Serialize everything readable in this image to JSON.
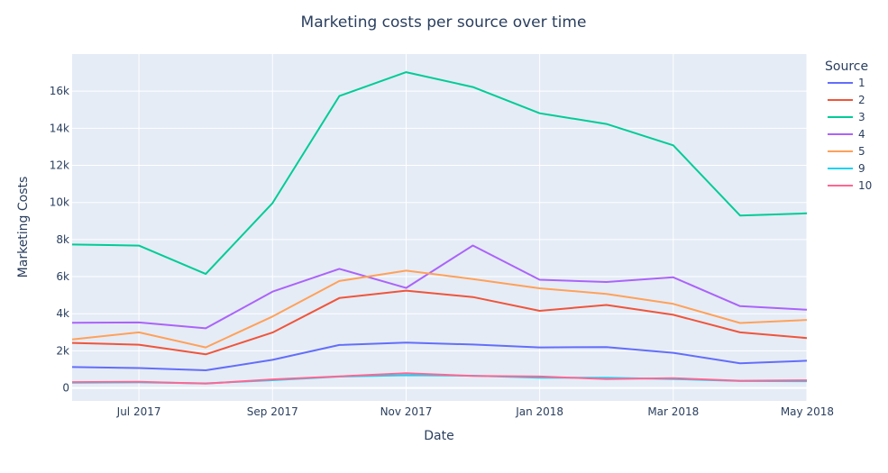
{
  "chart_data": {
    "type": "line",
    "title": "Marketing costs per source over time",
    "xlabel": "Date",
    "ylabel": "Marketing Costs",
    "x": [
      "2017-06",
      "2017-07",
      "2017-08",
      "2017-09",
      "2017-10",
      "2017-11",
      "2017-12",
      "2018-01",
      "2018-02",
      "2018-03",
      "2018-04",
      "2018-05"
    ],
    "xlim": [
      "2017-06",
      "2018-05"
    ],
    "ylim": [
      -700,
      18000
    ],
    "x_ticks": [
      {
        "x": "2017-07",
        "label": "Jul 2017"
      },
      {
        "x": "2017-09",
        "label": "Sep 2017"
      },
      {
        "x": "2017-11",
        "label": "Nov 2017"
      },
      {
        "x": "2018-01",
        "label": "Jan 2018"
      },
      {
        "x": "2018-03",
        "label": "Mar 2018"
      },
      {
        "x": "2018-05",
        "label": "May 2018"
      }
    ],
    "y_ticks": [
      {
        "value": 0,
        "label": "0"
      },
      {
        "value": 2000,
        "label": "2k"
      },
      {
        "value": 4000,
        "label": "4k"
      },
      {
        "value": 6000,
        "label": "6k"
      },
      {
        "value": 8000,
        "label": "8k"
      },
      {
        "value": 10000,
        "label": "10k"
      },
      {
        "value": 12000,
        "label": "12k"
      },
      {
        "value": 14000,
        "label": "14k"
      },
      {
        "value": 16000,
        "label": "16k"
      }
    ],
    "grid": true,
    "legend": {
      "title": "Source",
      "placement": "right"
    },
    "series": [
      {
        "name": "1",
        "color": "#636efa",
        "values": [
          1125,
          1073,
          951,
          1517,
          2316,
          2445,
          2342,
          2187,
          2205,
          1894,
          1327,
          1468
        ]
      },
      {
        "name": "2",
        "color": "#EF553B",
        "values": [
          2427,
          2333,
          1811,
          2985,
          4845,
          5247,
          4898,
          4157,
          4474,
          3943,
          2994,
          2690
        ]
      },
      {
        "name": "3",
        "color": "#00cc96",
        "values": [
          7732,
          7675,
          6144,
          9964,
          15737,
          17026,
          16220,
          14809,
          14229,
          13081,
          9297,
          9411
        ]
      },
      {
        "name": "4",
        "color": "#ab63fa",
        "values": [
          3515,
          3530,
          3217,
          5193,
          6420,
          5389,
          7680,
          5833,
          5711,
          5962,
          4409,
          4214
        ]
      },
      {
        "name": "5",
        "color": "#FFA15A",
        "values": [
          2616,
          2998,
          2185,
          3849,
          5767,
          6325,
          5873,
          5371,
          5072,
          4530,
          3502,
          3669
        ]
      },
      {
        "name": "9",
        "color": "#19d3f3",
        "values": [
          285,
          302,
          248,
          415,
          610,
          683,
          658,
          547,
          551,
          480,
          373,
          362
        ]
      },
      {
        "name": "10",
        "color": "#FF6692",
        "values": [
          314,
          329,
          232,
          461,
          627,
          792,
          645,
          614,
          480,
          526,
          388,
          410
        ]
      }
    ]
  }
}
